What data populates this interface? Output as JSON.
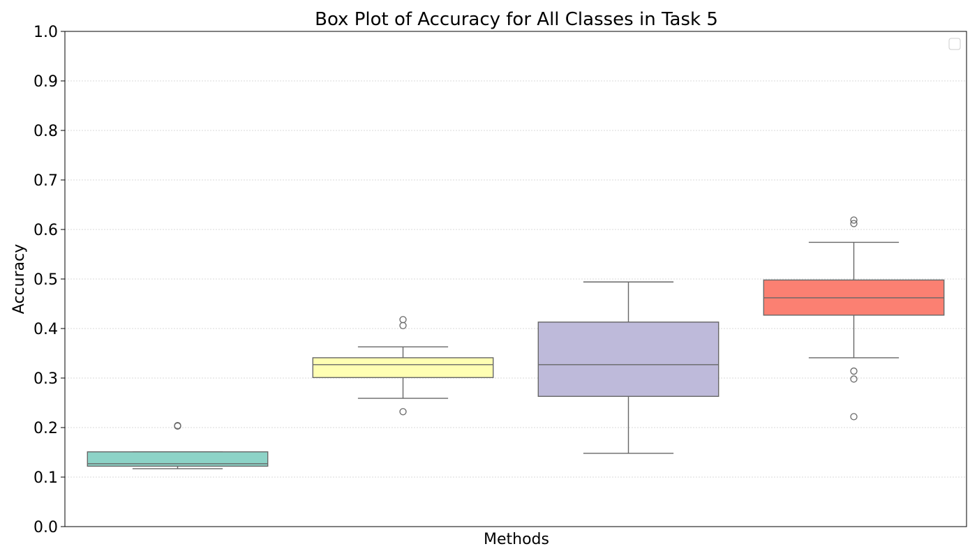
{
  "chart_data": {
    "type": "box",
    "title": "Box Plot of Accuracy for All Classes in Task 5",
    "xlabel": "Methods",
    "ylabel": "Accuracy",
    "ylim": [
      0.0,
      1.0
    ],
    "yticks": [
      "0.0",
      "0.1",
      "0.2",
      "0.3",
      "0.4",
      "0.5",
      "0.6",
      "0.7",
      "0.8",
      "0.9",
      "1.0"
    ],
    "grid": "y-dotted",
    "legend": {
      "placement": "top-right",
      "entries": []
    },
    "boxes": [
      {
        "whisker_low": 0.117,
        "q1": 0.122,
        "median": 0.127,
        "q3": 0.151,
        "whisker_high": 0.151,
        "outliers": [
          0.203,
          0.204
        ],
        "color": "#8dd3c7"
      },
      {
        "whisker_low": 0.259,
        "q1": 0.301,
        "median": 0.327,
        "q3": 0.341,
        "whisker_high": 0.363,
        "outliers": [
          0.232,
          0.406,
          0.418
        ],
        "color": "#ffffb3"
      },
      {
        "whisker_low": 0.148,
        "q1": 0.263,
        "median": 0.327,
        "q3": 0.413,
        "whisker_high": 0.494,
        "outliers": [],
        "color": "#bebada"
      },
      {
        "whisker_low": 0.341,
        "q1": 0.427,
        "median": 0.462,
        "q3": 0.498,
        "whisker_high": 0.574,
        "outliers": [
          0.222,
          0.298,
          0.314,
          0.612,
          0.619
        ],
        "color": "#fb8072"
      }
    ]
  }
}
